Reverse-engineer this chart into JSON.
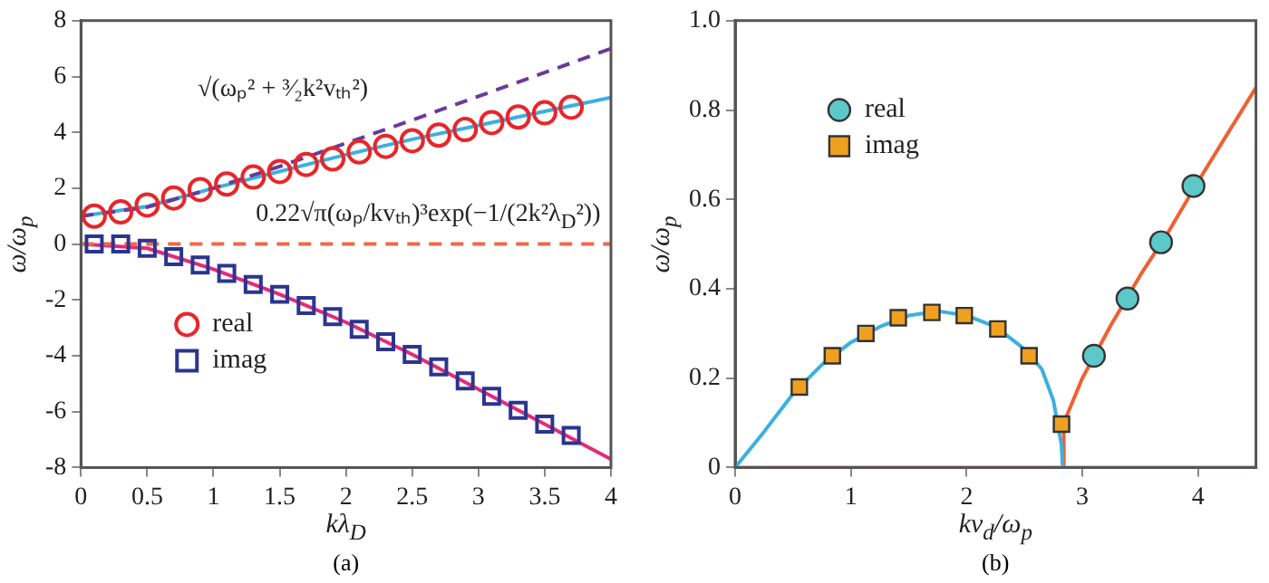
{
  "chart_data": [
    {
      "type": "line",
      "xlabel": "kλ$_{D}$",
      "ylabel": "ω/ω$_{p}$",
      "xlim": [
        0,
        4
      ],
      "xticks": [
        0,
        0.5,
        1,
        1.5,
        2,
        2.5,
        3,
        3.5,
        4
      ],
      "ylim": [
        -8,
        8
      ],
      "yticks": [
        -8,
        -6,
        -4,
        -2,
        0,
        2,
        4,
        6,
        8
      ],
      "grid": false,
      "legend": "bottom left",
      "annotations": [
        "√(ωₚ² + ³⁄₂k²vₜₕ²)",
        "0.22√π(ωₚ/kvₜₕ)³exp(−1/(2k²λ$_{D}$²))",
        "(a)"
      ],
      "series": [
        {
          "type": "line",
          "color": "#6a3a9a",
          "line_style": "dashed",
          "marker": "none",
          "x": [
            0,
            0.5,
            1,
            1.5,
            2,
            2.5,
            3,
            3.5,
            4
          ],
          "values": [
            1,
            1.32,
            2,
            2.78,
            3.61,
            4.44,
            5.29,
            6.14,
            7
          ]
        },
        {
          "type": "line",
          "color": "#3bb0e0",
          "line_style": "solid",
          "marker": "none",
          "x": [
            0,
            0.5,
            1,
            1.5,
            2,
            2.5,
            3,
            3.5,
            4
          ],
          "values": [
            1,
            1.35,
            2,
            2.6,
            3.2,
            3.75,
            4.25,
            4.75,
            5.25
          ]
        },
        {
          "type": "line",
          "color": "#f06848",
          "line_style": "dashed",
          "marker": "none",
          "x": [
            0,
            4
          ],
          "values": [
            0,
            0
          ]
        },
        {
          "type": "line",
          "color": "#e8287a",
          "line_style": "solid",
          "marker": "none",
          "x": [
            0,
            0.5,
            1,
            1.5,
            2,
            2.5,
            3,
            3.5,
            4
          ],
          "values": [
            0,
            -0.15,
            -0.9,
            -1.8,
            -2.8,
            -3.95,
            -5.2,
            -6.45,
            -7.7
          ]
        },
        {
          "type": "scatter",
          "name": "real",
          "color": "#e8262a",
          "marker": "circle",
          "x": [
            0.1,
            0.3,
            0.5,
            0.7,
            0.9,
            1.1,
            1.3,
            1.5,
            1.7,
            1.9,
            2.1,
            2.3,
            2.5,
            2.7,
            2.9,
            3.1,
            3.3,
            3.5,
            3.7
          ],
          "values": [
            1,
            1.15,
            1.4,
            1.65,
            1.95,
            2.15,
            2.4,
            2.6,
            2.85,
            3.05,
            3.3,
            3.5,
            3.7,
            3.9,
            4.1,
            4.35,
            4.55,
            4.7,
            4.9
          ]
        },
        {
          "type": "scatter",
          "name": "imag",
          "color": "#2b3590",
          "marker": "square",
          "x": [
            0.1,
            0.3,
            0.5,
            0.7,
            0.9,
            1.1,
            1.3,
            1.5,
            1.7,
            1.9,
            2.1,
            2.3,
            2.5,
            2.7,
            2.9,
            3.1,
            3.3,
            3.5,
            3.7
          ],
          "values": [
            0,
            0,
            -0.15,
            -0.45,
            -0.75,
            -1.05,
            -1.45,
            -1.8,
            -2.2,
            -2.6,
            -3.05,
            -3.5,
            -3.95,
            -4.4,
            -4.9,
            -5.45,
            -5.95,
            -6.45,
            -6.85
          ]
        }
      ]
    },
    {
      "type": "line",
      "xlabel": "kv$_{d}$/ω$_{p}$",
      "ylabel": "ω/ω$_{p}$",
      "xlim": [
        0,
        4.5
      ],
      "xticks": [
        0,
        1,
        2,
        3,
        4
      ],
      "ylim": [
        0,
        1
      ],
      "yticks": [
        0,
        0.2,
        0.4,
        0.6,
        0.8,
        {
          "value": 1,
          "label": "1.0"
        }
      ],
      "grid": false,
      "legend": "top left",
      "annotations": [
        "(b)"
      ],
      "series": [
        {
          "type": "line",
          "color": "#3bb0e0",
          "line_style": "solid",
          "marker": "none",
          "x": [
            0,
            0.25,
            0.5,
            0.75,
            1,
            1.25,
            1.5,
            1.75,
            2,
            2.25,
            2.5,
            2.65,
            2.75,
            2.82,
            2.83,
            4.5
          ],
          "values": [
            0,
            0.08,
            0.165,
            0.23,
            0.28,
            0.315,
            0.34,
            0.35,
            0.34,
            0.315,
            0.265,
            0.22,
            0.15,
            0.05,
            0,
            0
          ]
        },
        {
          "type": "line",
          "color": "#f06030",
          "line_style": "solid",
          "marker": "none",
          "x": [
            0,
            2.83,
            2.84,
            3,
            3.25,
            3.5,
            3.75,
            4,
            4.25,
            4.5
          ],
          "values": [
            0,
            0,
            0.1,
            0.2,
            0.32,
            0.43,
            0.53,
            0.64,
            0.745,
            0.85
          ]
        },
        {
          "type": "scatter",
          "name": "real",
          "color": "#5cc8c8",
          "marker": "circle",
          "x": [
            3.1,
            3.39,
            3.68,
            3.96
          ],
          "values": [
            0.25,
            0.378,
            0.504,
            0.63
          ]
        },
        {
          "type": "scatter",
          "name": "imag",
          "color": "#f0a020",
          "marker": "square",
          "x": [
            0.555,
            0.84,
            1.13,
            1.41,
            1.7,
            1.98,
            2.27,
            2.54,
            2.82
          ],
          "values": [
            0.18,
            0.25,
            0.3,
            0.335,
            0.347,
            0.34,
            0.31,
            0.25,
            0.097
          ]
        }
      ]
    }
  ]
}
